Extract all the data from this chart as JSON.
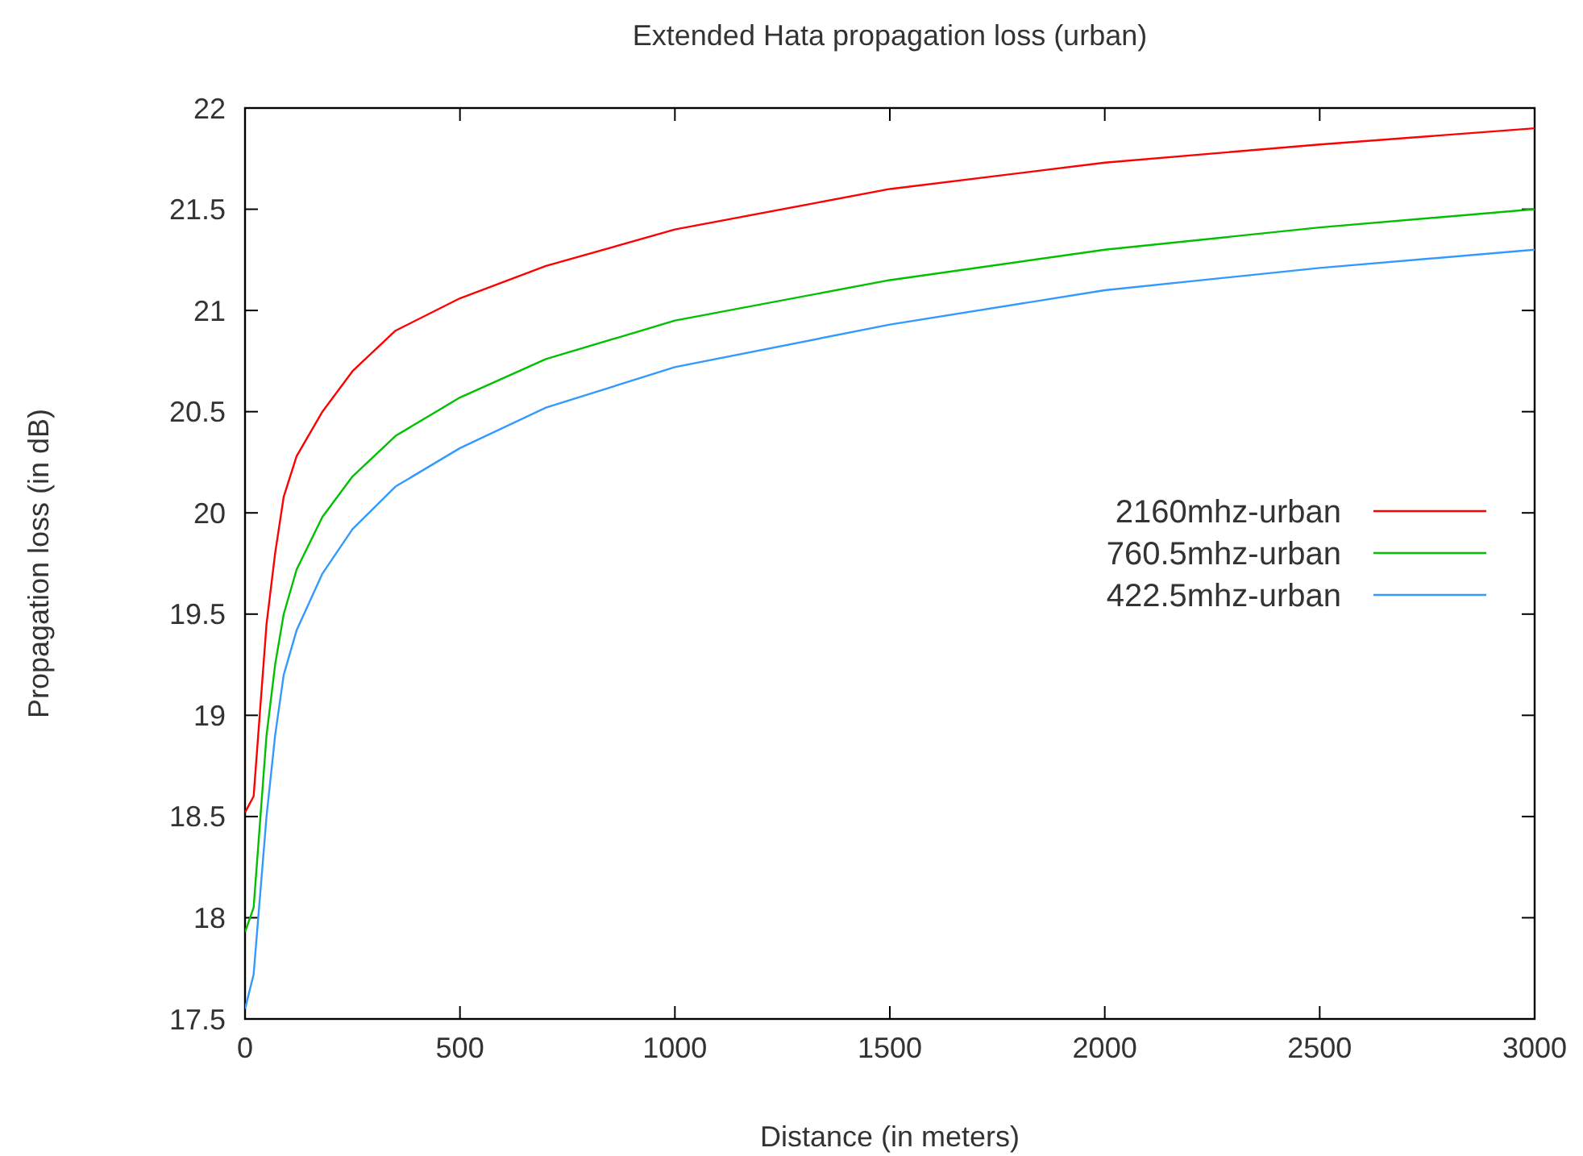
{
  "chart_data": {
    "type": "line",
    "title": "Extended Hata propagation loss (urban)",
    "xlabel": "Distance (in meters)",
    "ylabel": "Propagation loss (in dB)",
    "xlim": [
      0,
      3000
    ],
    "xticks": [
      0,
      500,
      1000,
      1500,
      2000,
      2500,
      3000
    ],
    "ylim": [
      17.5,
      22
    ],
    "yticks": [
      17.5,
      18,
      18.5,
      19,
      19.5,
      20,
      20.5,
      21,
      21.5,
      22
    ],
    "grid": false,
    "legend": "top right",
    "marker": "none",
    "line_style": "solid",
    "series": [
      {
        "name": "2160mhz-urban",
        "color": "#ff0000",
        "x": [
          0,
          20,
          50,
          70,
          90,
          120,
          180,
          250,
          350,
          500,
          700,
          1000,
          1500,
          2000,
          2500,
          3000
        ],
        "values": [
          18.52,
          18.6,
          19.45,
          19.8,
          20.08,
          20.28,
          20.5,
          20.7,
          20.9,
          21.06,
          21.22,
          21.4,
          21.6,
          21.73,
          21.82,
          21.9
        ]
      },
      {
        "name": "760.5mhz-urban",
        "color": "#00c000",
        "x": [
          0,
          20,
          50,
          70,
          90,
          120,
          180,
          250,
          350,
          500,
          700,
          1000,
          1500,
          2000,
          2500,
          3000
        ],
        "values": [
          17.93,
          18.05,
          18.9,
          19.25,
          19.5,
          19.72,
          19.98,
          20.18,
          20.38,
          20.57,
          20.76,
          20.95,
          21.15,
          21.3,
          21.41,
          21.5
        ]
      },
      {
        "name": "422.5mhz-urban",
        "color": "#3399ff",
        "x": [
          0,
          20,
          50,
          70,
          90,
          120,
          180,
          250,
          350,
          500,
          700,
          1000,
          1500,
          2000,
          2500,
          3000
        ],
        "values": [
          17.55,
          17.72,
          18.5,
          18.9,
          19.2,
          19.42,
          19.7,
          19.92,
          20.13,
          20.32,
          20.52,
          20.72,
          20.93,
          21.1,
          21.21,
          21.3
        ]
      }
    ]
  }
}
